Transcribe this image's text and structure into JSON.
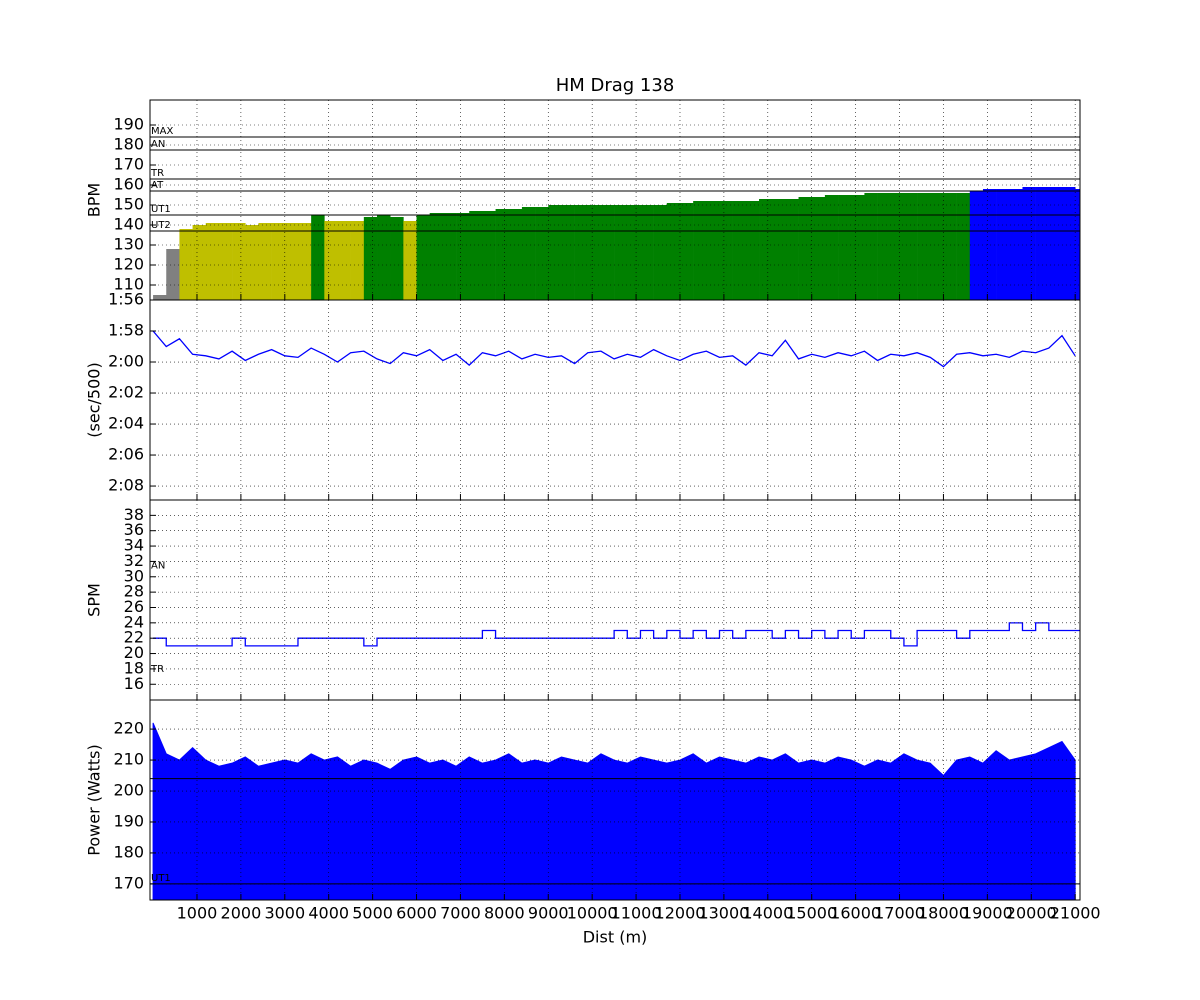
{
  "chart_data": [
    {
      "type": "bar",
      "title": "HM Drag 138",
      "ylabel": "BPM",
      "x": [
        0,
        300,
        600,
        900,
        1200,
        1500,
        1800,
        2100,
        2400,
        2700,
        3000,
        3300,
        3600,
        3900,
        4200,
        4500,
        4800,
        5100,
        5400,
        5700,
        6000,
        6300,
        6600,
        6900,
        7200,
        7500,
        7800,
        8100,
        8400,
        8700,
        9000,
        9300,
        9600,
        9900,
        10200,
        10500,
        10800,
        11100,
        11400,
        11700,
        12000,
        12300,
        12600,
        12900,
        13200,
        13500,
        13800,
        14100,
        14400,
        14700,
        15000,
        15300,
        15600,
        15900,
        16200,
        16500,
        16800,
        17100,
        17400,
        17700,
        18000,
        18300,
        18600,
        18900,
        19200,
        19500,
        19800,
        20100,
        20400,
        20700,
        21000
      ],
      "values": [
        105,
        128,
        138,
        140,
        141,
        141,
        141,
        140,
        141,
        141,
        141,
        141,
        145,
        142,
        142,
        142,
        144,
        145,
        144,
        142,
        145,
        146,
        146,
        146,
        147,
        147,
        148,
        148,
        149,
        149,
        150,
        150,
        150,
        150,
        150,
        150,
        150,
        150,
        150,
        151,
        151,
        152,
        152,
        152,
        152,
        152,
        153,
        153,
        153,
        154,
        154,
        155,
        155,
        155,
        156,
        156,
        156,
        156,
        156,
        156,
        156,
        156,
        157,
        158,
        158,
        158,
        159,
        159,
        159,
        159,
        158
      ],
      "colors": [
        "#808080",
        "#808080",
        "#bfbf00",
        "#bfbf00",
        "#bfbf00",
        "#bfbf00",
        "#bfbf00",
        "#bfbf00",
        "#bfbf00",
        "#bfbf00",
        "#bfbf00",
        "#bfbf00",
        "#008000",
        "#bfbf00",
        "#bfbf00",
        "#bfbf00",
        "#008000",
        "#008000",
        "#008000",
        "#bfbf00",
        "#008000",
        "#008000",
        "#008000",
        "#008000",
        "#008000",
        "#008000",
        "#008000",
        "#008000",
        "#008000",
        "#008000",
        "#008000",
        "#008000",
        "#008000",
        "#008000",
        "#008000",
        "#008000",
        "#008000",
        "#008000",
        "#008000",
        "#008000",
        "#008000",
        "#008000",
        "#008000",
        "#008000",
        "#008000",
        "#008000",
        "#008000",
        "#008000",
        "#008000",
        "#008000",
        "#008000",
        "#008000",
        "#008000",
        "#008000",
        "#008000",
        "#008000",
        "#008000",
        "#008000",
        "#008000",
        "#008000",
        "#008000",
        "#008000",
        "#0000ff",
        "#0000ff",
        "#0000ff",
        "#0000ff",
        "#0000ff",
        "#0000ff",
        "#0000ff",
        "#0000ff",
        "#0000ff"
      ],
      "hlines": [
        {
          "value": 184,
          "label": "MAX"
        },
        {
          "value": 177.5,
          "label": "AN"
        },
        {
          "value": 163,
          "label": "TR"
        },
        {
          "value": 157,
          "label": "AT"
        },
        {
          "value": 145,
          "label": "UT1"
        },
        {
          "value": 137,
          "label": "UT2"
        }
      ],
      "xlim": [
        -70,
        21110
      ],
      "xticks": [
        1000,
        2000,
        3000,
        4000,
        5000,
        6000,
        7000,
        8000,
        9000,
        10000,
        11000,
        12000,
        13000,
        14000,
        15000,
        16000,
        17000,
        18000,
        19000,
        20000,
        21000
      ],
      "ylim": [
        102.5,
        202.5
      ],
      "yticks": [
        110,
        120,
        130,
        140,
        150,
        160,
        170,
        180,
        190
      ],
      "grid": true
    },
    {
      "type": "line",
      "ylabel": "(sec/500)",
      "color": "#0000ff",
      "x": [
        0,
        300,
        600,
        900,
        1200,
        1500,
        1800,
        2100,
        2400,
        2700,
        3000,
        3300,
        3600,
        3900,
        4200,
        4500,
        4800,
        5100,
        5400,
        5700,
        6000,
        6300,
        6600,
        6900,
        7200,
        7500,
        7800,
        8100,
        8400,
        8700,
        9000,
        9300,
        9600,
        9900,
        10200,
        10500,
        10800,
        11100,
        11400,
        11700,
        12000,
        12300,
        12600,
        12900,
        13200,
        13500,
        13800,
        14100,
        14400,
        14700,
        15000,
        15300,
        15600,
        15900,
        16200,
        16500,
        16800,
        17100,
        17400,
        17700,
        18000,
        18300,
        18600,
        18900,
        19200,
        19500,
        19800,
        20100,
        20400,
        20700,
        21000
      ],
      "values": [
        118,
        119,
        118.5,
        119.5,
        119.6,
        119.8,
        119.3,
        119.9,
        119.5,
        119.2,
        119.6,
        119.7,
        119.1,
        119.5,
        120,
        119.4,
        119.3,
        119.8,
        120.1,
        119.4,
        119.6,
        119.2,
        119.9,
        119.5,
        120.2,
        119.4,
        119.6,
        119.3,
        119.8,
        119.5,
        119.7,
        119.6,
        120.1,
        119.4,
        119.3,
        119.8,
        119.5,
        119.7,
        119.2,
        119.6,
        119.9,
        119.5,
        119.3,
        119.7,
        119.6,
        120.2,
        119.4,
        119.6,
        118.6,
        119.8,
        119.5,
        119.7,
        119.4,
        119.6,
        119.3,
        119.9,
        119.5,
        119.6,
        119.4,
        119.7,
        120.3,
        119.5,
        119.4,
        119.6,
        119.5,
        119.7,
        119.3,
        119.4,
        119.1,
        118.3,
        119.6
      ],
      "xlim": [
        -70,
        21110
      ],
      "xticks": [
        1000,
        2000,
        3000,
        4000,
        5000,
        6000,
        7000,
        8000,
        9000,
        10000,
        11000,
        12000,
        13000,
        14000,
        15000,
        16000,
        17000,
        18000,
        19000,
        20000,
        21000
      ],
      "ylim": [
        128.9,
        116
      ],
      "yticks": [
        {
          "value": 116,
          "label": "1:56"
        },
        {
          "value": 118,
          "label": "1:58"
        },
        {
          "value": 120,
          "label": "2:00"
        },
        {
          "value": 122,
          "label": "2:02"
        },
        {
          "value": 124,
          "label": "2:04"
        },
        {
          "value": 126,
          "label": "2:06"
        },
        {
          "value": 128,
          "label": "2:08"
        }
      ],
      "grid": true
    },
    {
      "type": "step",
      "ylabel": "SPM",
      "color": "#0000ff",
      "x": [
        0,
        300,
        600,
        900,
        1200,
        1500,
        1800,
        2100,
        2400,
        2700,
        3000,
        3300,
        3600,
        3900,
        4200,
        4500,
        4800,
        5100,
        5400,
        5700,
        6000,
        6300,
        6600,
        6900,
        7200,
        7500,
        7800,
        8100,
        8400,
        8700,
        9000,
        9300,
        9600,
        9900,
        10200,
        10500,
        10800,
        11100,
        11400,
        11700,
        12000,
        12300,
        12600,
        12900,
        13200,
        13500,
        13800,
        14100,
        14400,
        14700,
        15000,
        15300,
        15600,
        15900,
        16200,
        16500,
        16800,
        17100,
        17400,
        17700,
        18000,
        18300,
        18600,
        18900,
        19200,
        19500,
        19800,
        20100,
        20400,
        20700,
        21000
      ],
      "values": [
        22,
        21,
        21,
        21,
        21,
        21,
        22,
        21,
        21,
        21,
        21,
        22,
        22,
        22,
        22,
        22,
        21,
        22,
        22,
        22,
        22,
        22,
        22,
        22,
        22,
        23,
        22,
        22,
        22,
        22,
        22,
        22,
        22,
        22,
        22,
        23,
        22,
        23,
        22,
        23,
        22,
        23,
        22,
        23,
        22,
        23,
        23,
        22,
        23,
        22,
        23,
        22,
        23,
        22,
        23,
        23,
        22,
        21,
        23,
        23,
        23,
        22,
        23,
        23,
        23,
        24,
        23,
        24,
        23,
        23,
        23
      ],
      "annotations": [
        {
          "value": 31.5,
          "label": "AN"
        },
        {
          "value": 18,
          "label": "TR"
        }
      ],
      "xlim": [
        -70,
        21110
      ],
      "xticks": [
        1000,
        2000,
        3000,
        4000,
        5000,
        6000,
        7000,
        8000,
        9000,
        10000,
        11000,
        12000,
        13000,
        14000,
        15000,
        16000,
        17000,
        18000,
        19000,
        20000,
        21000
      ],
      "ylim": [
        13.95,
        40
      ],
      "yticks": [
        16,
        18,
        20,
        22,
        24,
        26,
        28,
        30,
        32,
        34,
        36,
        38
      ],
      "grid": true
    },
    {
      "type": "area",
      "ylabel": "Power (Watts)",
      "xlabel": "Dist (m)",
      "color": "#0000ff",
      "x": [
        0,
        300,
        600,
        900,
        1200,
        1500,
        1800,
        2100,
        2400,
        2700,
        3000,
        3300,
        3600,
        3900,
        4200,
        4500,
        4800,
        5100,
        5400,
        5700,
        6000,
        6300,
        6600,
        6900,
        7200,
        7500,
        7800,
        8100,
        8400,
        8700,
        9000,
        9300,
        9600,
        9900,
        10200,
        10500,
        10800,
        11100,
        11400,
        11700,
        12000,
        12300,
        12600,
        12900,
        13200,
        13500,
        13800,
        14100,
        14400,
        14700,
        15000,
        15300,
        15600,
        15900,
        16200,
        16500,
        16800,
        17100,
        17400,
        17700,
        18000,
        18300,
        18600,
        18900,
        19200,
        19500,
        19800,
        20100,
        20400,
        20700,
        21000
      ],
      "values": [
        222,
        212,
        210,
        214,
        210,
        208,
        209,
        211,
        208,
        209,
        210,
        209,
        212,
        210,
        211,
        208,
        210,
        209,
        207,
        210,
        211,
        209,
        210,
        208,
        211,
        209,
        210,
        212,
        209,
        210,
        209,
        211,
        210,
        209,
        212,
        210,
        209,
        211,
        210,
        209,
        210,
        212,
        209,
        211,
        210,
        209,
        211,
        210,
        212,
        209,
        210,
        209,
        211,
        210,
        208,
        210,
        209,
        212,
        210,
        209,
        205,
        210,
        211,
        209,
        213,
        210,
        211,
        212,
        214,
        216,
        210
      ],
      "hlines": [
        {
          "value": 204
        },
        {
          "value": 170,
          "label": "UT1"
        }
      ],
      "xlim": [
        -70,
        21110
      ],
      "xticks": [
        1000,
        2000,
        3000,
        4000,
        5000,
        6000,
        7000,
        8000,
        9000,
        10000,
        11000,
        12000,
        13000,
        14000,
        15000,
        16000,
        17000,
        18000,
        19000,
        20000,
        21000
      ],
      "ylim": [
        164.8,
        229.4
      ],
      "yticks": [
        170,
        180,
        190,
        200,
        210,
        220
      ],
      "grid": true
    }
  ]
}
